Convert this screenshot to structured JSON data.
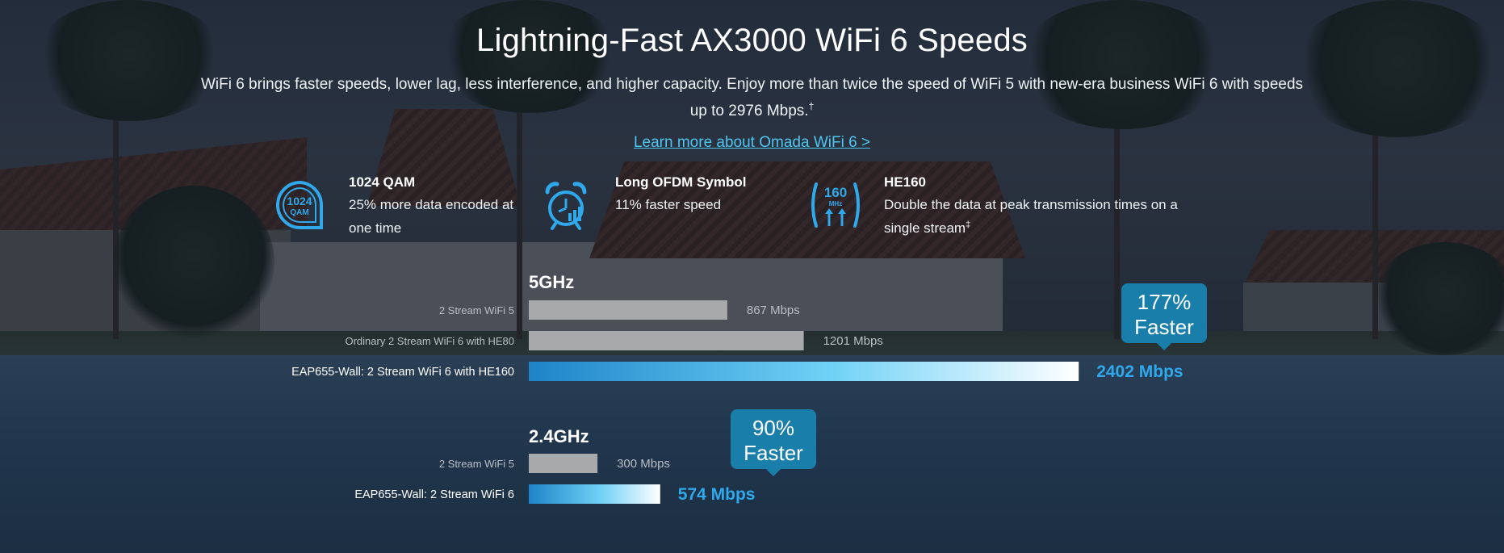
{
  "header": {
    "title": "Lightning-Fast AX3000 WiFi 6 Speeds",
    "subtitle": "WiFi 6 brings faster speeds, lower lag, less interference, and higher capacity. Enjoy more than twice the speed of WiFi 5 with new-era business WiFi 6 with speeds up to 2976 Mbps.",
    "subtitle_mark": "†",
    "learn_more": "Learn more about Omada WiFi 6 >"
  },
  "features": [
    {
      "icon": "1024-qam-icon",
      "icon_text": "1024",
      "icon_subtext": "QAM",
      "title": "1024 QAM",
      "description": "25% more data encoded at one time",
      "mark": ""
    },
    {
      "icon": "alarm-clock-icon",
      "title": "Long OFDM Symbol",
      "description": "11% faster speed",
      "mark": ""
    },
    {
      "icon": "he160-antenna-icon",
      "icon_text": "160",
      "icon_subtext": "MHz",
      "title": "HE160",
      "description": "Double the data at peak transmission times on a single stream",
      "mark": "‡"
    }
  ],
  "colors": {
    "accent": "#2fa8ec",
    "bar_gray": "#a7a9ab",
    "gradient_start": "#1e84c8",
    "gradient_mid": "#6fd2f6",
    "gradient_end": "#ffffff",
    "callout_bg": "#1a7eab"
  },
  "chart_data": [
    {
      "type": "bar",
      "orientation": "horizontal",
      "title": "5GHz",
      "unit": "Mbps",
      "categories": [
        "2 Stream WiFi 5",
        "Ordinary 2 Stream WiFi 6 with HE80",
        "EAP655-Wall: 2 Stream WiFi 6 with HE160"
      ],
      "values": [
        867,
        1201,
        2402
      ],
      "value_labels": [
        "867 Mbps",
        "1201 Mbps",
        "2402 Mbps"
      ],
      "highlight_index": 2,
      "callout": {
        "line1": "177%",
        "line2": "Faster"
      }
    },
    {
      "type": "bar",
      "orientation": "horizontal",
      "title": "2.4GHz",
      "unit": "Mbps",
      "categories": [
        "2 Stream WiFi 5",
        "EAP655-Wall: 2 Stream WiFi 6"
      ],
      "values": [
        300,
        574
      ],
      "value_labels": [
        "300 Mbps",
        "574 Mbps"
      ],
      "highlight_index": 1,
      "callout": {
        "line1": "90%",
        "line2": "Faster"
      }
    }
  ]
}
